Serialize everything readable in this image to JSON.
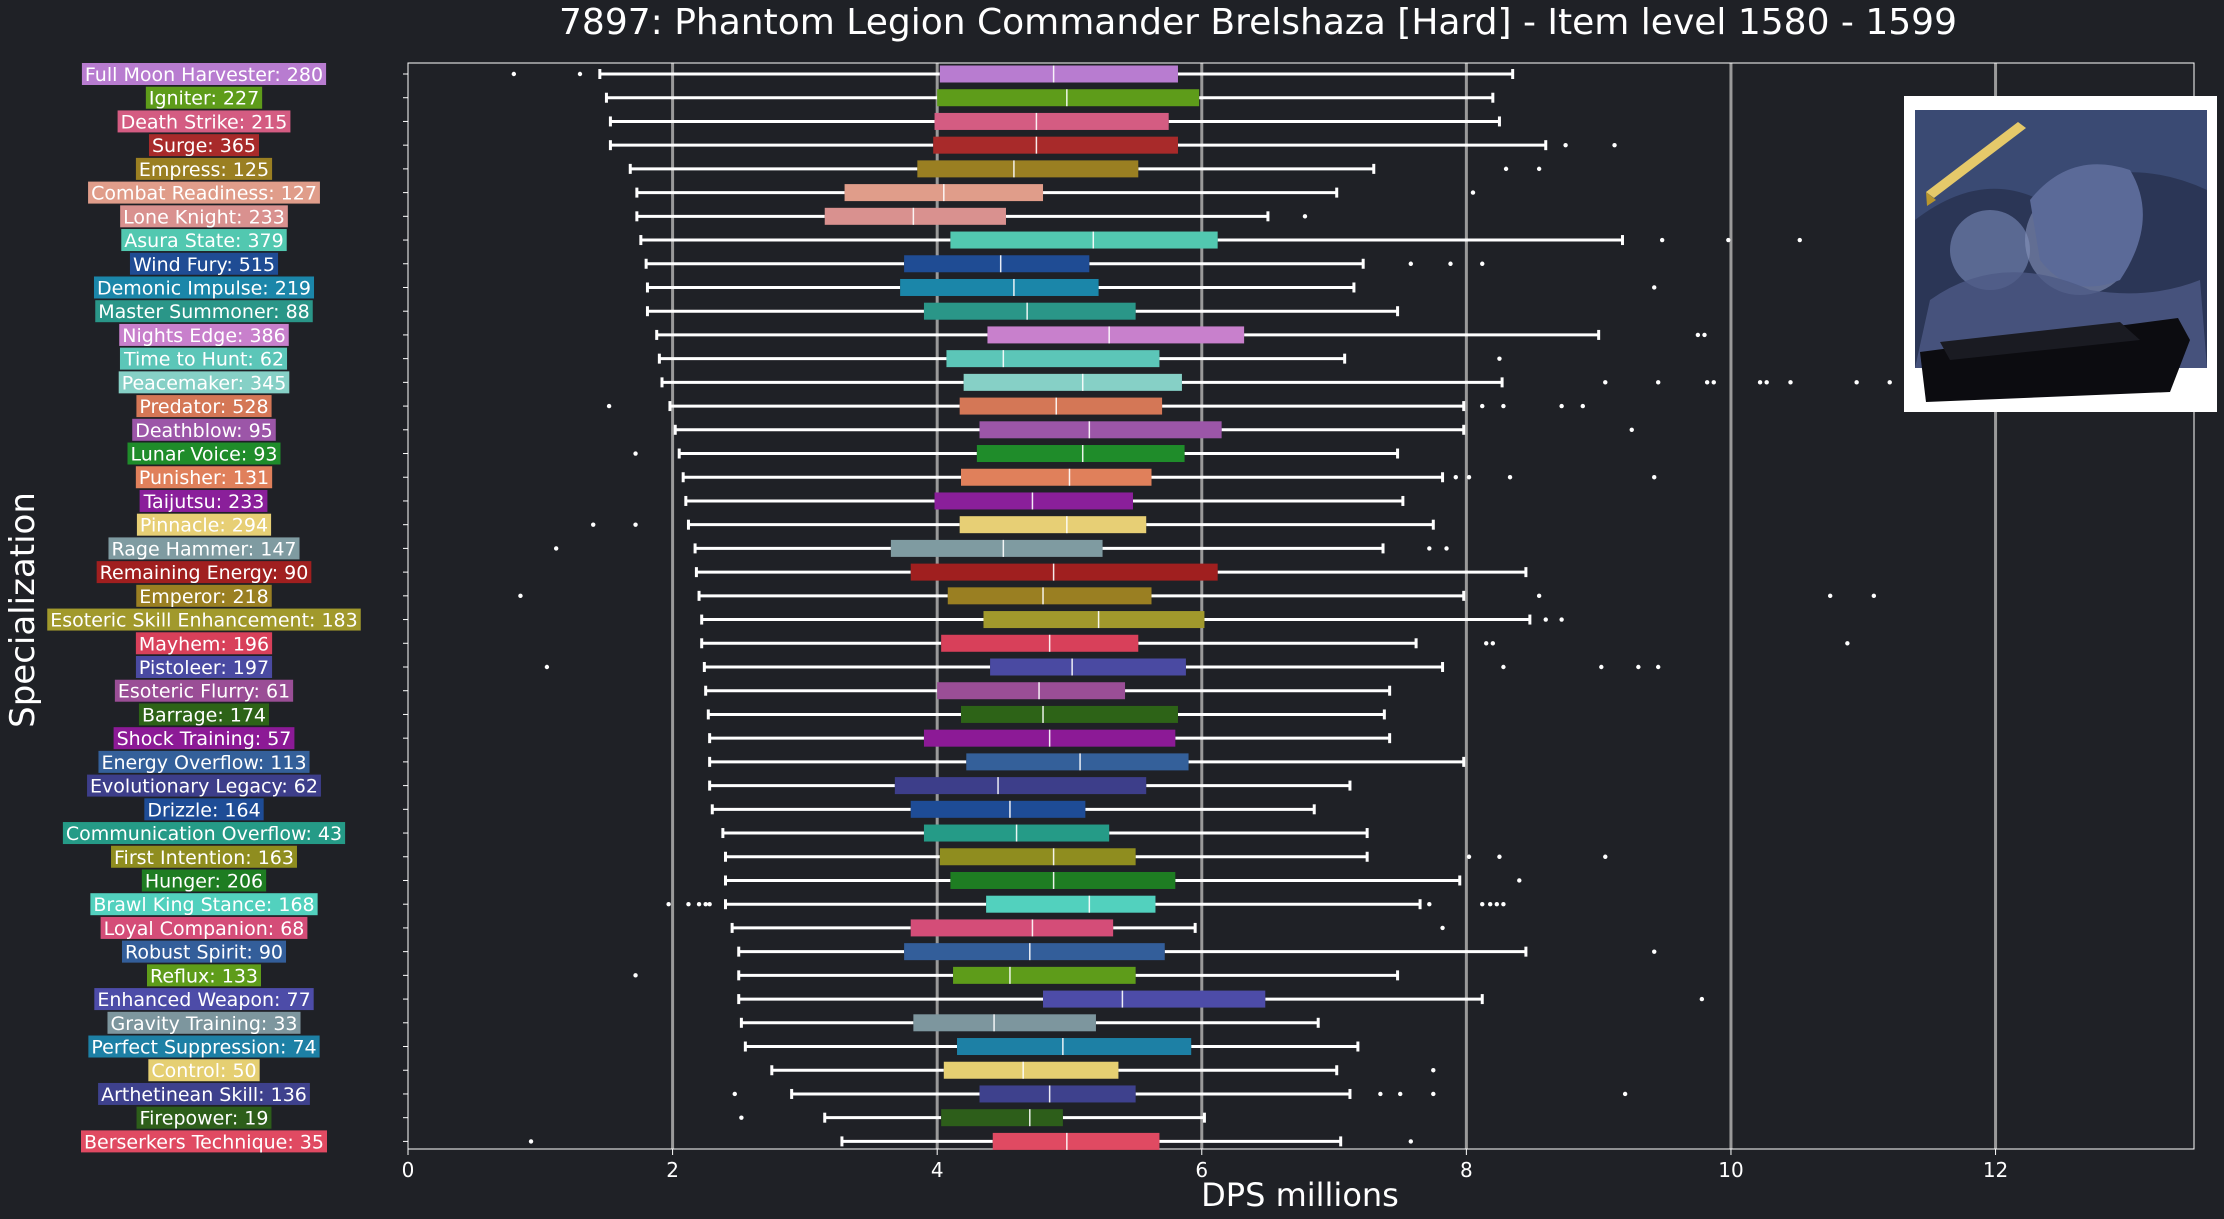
{
  "chart_data": {
    "type": "box",
    "title": "7897: Phantom Legion Commander Brelshaza [Hard] - Item level 1580 - 1599",
    "xlabel": "DPS millions",
    "ylabel": "Specialization",
    "xlim": [
      0,
      13.5
    ],
    "xticks": [
      0,
      2,
      4,
      6,
      8,
      10,
      12
    ],
    "grid": "vertical at 2, 4, 6, 8, 10, 12",
    "image_inset": "boss portrait (top-right)",
    "series": [
      {
        "label": "Full Moon Harvester: 280",
        "color": "#b87cd0",
        "box": [
          1.45,
          4.02,
          4.88,
          5.82,
          8.35
        ],
        "outliers": [
          0.8,
          1.3
        ]
      },
      {
        "label": "Igniter: 227",
        "color": "#5e9c1a",
        "box": [
          1.5,
          4.0,
          4.98,
          5.98,
          8.2
        ],
        "outliers": []
      },
      {
        "label": "Death Strike: 215",
        "color": "#d45c82",
        "box": [
          1.53,
          3.98,
          4.75,
          5.75,
          8.25
        ],
        "outliers": []
      },
      {
        "label": "Surge: 365",
        "color": "#a82a2a",
        "box": [
          1.53,
          3.97,
          4.75,
          5.82,
          8.6
        ],
        "outliers": [
          8.75,
          9.12
        ]
      },
      {
        "label": "Empress: 125",
        "color": "#9a7f22",
        "box": [
          1.68,
          3.85,
          4.58,
          5.52,
          7.3
        ],
        "outliers": [
          8.3,
          8.55
        ]
      },
      {
        "label": "Combat Readiness: 127",
        "color": "#e09d8a",
        "box": [
          1.73,
          3.3,
          4.05,
          4.8,
          7.02
        ],
        "outliers": [
          8.05
        ]
      },
      {
        "label": "Lone Knight: 233",
        "color": "#d9918f",
        "box": [
          1.73,
          3.15,
          3.82,
          4.52,
          6.5
        ],
        "outliers": [
          6.78
        ]
      },
      {
        "label": "Asura State: 379",
        "color": "#52c8b0",
        "box": [
          1.76,
          4.1,
          5.18,
          6.12,
          9.18
        ],
        "outliers": [
          9.48,
          9.98,
          10.52
        ]
      },
      {
        "label": "Wind Fury: 515",
        "color": "#1f4c94",
        "box": [
          1.8,
          3.75,
          4.48,
          5.15,
          7.22
        ],
        "outliers": [
          7.58,
          7.88,
          8.12
        ]
      },
      {
        "label": "Demonic Impulse: 219",
        "color": "#1b86a9",
        "box": [
          1.81,
          3.72,
          4.58,
          5.22,
          7.15
        ],
        "outliers": [
          9.42
        ]
      },
      {
        "label": "Master Summoner: 88",
        "color": "#2a9688",
        "box": [
          1.81,
          3.9,
          4.68,
          5.5,
          7.48
        ],
        "outliers": []
      },
      {
        "label": "Nights Edge: 386",
        "color": "#c880cc",
        "box": [
          1.88,
          4.38,
          5.3,
          6.32,
          9.0
        ],
        "outliers": [
          9.75,
          9.8
        ]
      },
      {
        "label": "Time to Hunt: 62",
        "color": "#5cc6b8",
        "box": [
          1.9,
          4.07,
          4.5,
          5.68,
          7.08
        ],
        "outliers": [
          8.25
        ]
      },
      {
        "label": "Peacemaker: 345",
        "color": "#86d0c6",
        "box": [
          1.92,
          4.2,
          5.1,
          5.85,
          8.27
        ],
        "outliers": [
          9.05,
          9.45,
          9.82,
          9.87,
          10.22,
          10.27,
          10.45,
          10.95,
          11.2
        ]
      },
      {
        "label": "Predator: 528",
        "color": "#d47756",
        "box": [
          1.98,
          4.17,
          4.9,
          5.7,
          7.98
        ],
        "outliers": [
          1.52,
          8.12,
          8.28,
          8.72,
          8.88
        ]
      },
      {
        "label": "Deathblow: 95",
        "color": "#9c56a8",
        "box": [
          2.02,
          4.32,
          5.15,
          6.15,
          7.98
        ],
        "outliers": [
          9.25
        ]
      },
      {
        "label": "Lunar Voice: 93",
        "color": "#1f8c2a",
        "box": [
          2.05,
          4.3,
          5.1,
          5.87,
          7.48
        ],
        "outliers": [
          1.72
        ]
      },
      {
        "label": "Punisher: 131",
        "color": "#e0805b",
        "box": [
          2.08,
          4.18,
          5.0,
          5.62,
          7.82
        ],
        "outliers": [
          7.92,
          8.02,
          8.33,
          9.42
        ]
      },
      {
        "label": "Taijutsu: 233",
        "color": "#8a1f9a",
        "box": [
          2.1,
          3.98,
          4.72,
          5.48,
          7.52
        ],
        "outliers": []
      },
      {
        "label": "Pinnacle: 294",
        "color": "#e7cf75",
        "box": [
          2.12,
          4.17,
          4.98,
          5.58,
          7.75
        ],
        "outliers": [
          1.4,
          1.72
        ]
      },
      {
        "label": "Rage Hammer: 147",
        "color": "#7f9ba1",
        "box": [
          2.17,
          3.65,
          4.5,
          5.25,
          7.37
        ],
        "outliers": [
          1.12,
          7.72,
          7.85
        ]
      },
      {
        "label": "Remaining Energy: 90",
        "color": "#a01f1f",
        "box": [
          2.18,
          3.8,
          4.88,
          6.12,
          8.45
        ],
        "outliers": []
      },
      {
        "label": "Emperor: 218",
        "color": "#9a7f22",
        "box": [
          2.2,
          4.08,
          4.8,
          5.62,
          7.98
        ],
        "outliers": [
          0.85,
          8.55,
          10.75,
          11.08
        ]
      },
      {
        "label": "Esoteric Skill Enhancement: 183",
        "color": "#a1992c",
        "box": [
          2.22,
          4.35,
          5.22,
          6.02,
          8.48
        ],
        "outliers": [
          8.6,
          8.72
        ]
      },
      {
        "label": "Mayhem: 196",
        "color": "#d8405a",
        "box": [
          2.22,
          4.03,
          4.85,
          5.52,
          7.62
        ],
        "outliers": [
          8.15,
          8.2,
          10.88
        ]
      },
      {
        "label": "Pistoleer: 197",
        "color": "#4a4aa2",
        "box": [
          2.24,
          4.4,
          5.02,
          5.88,
          7.82
        ],
        "outliers": [
          1.05,
          8.28,
          9.02,
          9.3,
          9.45
        ]
      },
      {
        "label": "Esoteric Flurry: 61",
        "color": "#9a4e96",
        "box": [
          2.25,
          4.0,
          4.77,
          5.42,
          7.42
        ],
        "outliers": []
      },
      {
        "label": "Barrage: 174",
        "color": "#2d6317",
        "box": [
          2.27,
          4.18,
          4.8,
          5.82,
          7.38
        ],
        "outliers": []
      },
      {
        "label": "Shock Training: 57",
        "color": "#8c1a96",
        "box": [
          2.28,
          3.9,
          4.85,
          5.8,
          7.42
        ],
        "outliers": []
      },
      {
        "label": "Energy Overflow: 113",
        "color": "#34609a",
        "box": [
          2.28,
          4.22,
          5.08,
          5.9,
          7.98
        ],
        "outliers": []
      },
      {
        "label": "Evolutionary Legacy: 62",
        "color": "#3d3e8a",
        "box": [
          2.28,
          3.68,
          4.46,
          5.58,
          7.12
        ],
        "outliers": []
      },
      {
        "label": "Drizzle: 164",
        "color": "#1e4c96",
        "box": [
          2.3,
          3.8,
          4.55,
          5.12,
          6.85
        ],
        "outliers": []
      },
      {
        "label": "Communication Overflow: 43",
        "color": "#259b87",
        "box": [
          2.38,
          3.9,
          4.6,
          5.3,
          7.25
        ],
        "outliers": []
      },
      {
        "label": "First Intention: 163",
        "color": "#8f8d1f",
        "box": [
          2.4,
          4.02,
          4.88,
          5.5,
          7.25
        ],
        "outliers": [
          8.02,
          8.25,
          9.05
        ]
      },
      {
        "label": "Hunger: 206",
        "color": "#1e7d22",
        "box": [
          2.4,
          4.1,
          4.88,
          5.8,
          7.95
        ],
        "outliers": [
          8.4
        ]
      },
      {
        "label": "Brawl King Stance: 168",
        "color": "#52d1be",
        "box": [
          2.4,
          4.37,
          5.15,
          5.65,
          7.65
        ],
        "outliers": [
          1.97,
          2.12,
          2.2,
          2.25,
          2.28,
          7.72,
          8.12,
          8.18,
          8.23,
          8.28
        ]
      },
      {
        "label": "Loyal Companion: 68",
        "color": "#d44d78",
        "box": [
          2.45,
          3.8,
          4.72,
          5.33,
          5.95
        ],
        "outliers": [
          7.82
        ]
      },
      {
        "label": "Robust Spirit: 90",
        "color": "#335e9a",
        "box": [
          2.5,
          3.75,
          4.7,
          5.72,
          8.45
        ],
        "outliers": [
          9.42
        ]
      },
      {
        "label": "Reflux: 133",
        "color": "#5e9c1a",
        "box": [
          2.5,
          4.12,
          4.55,
          5.5,
          7.48
        ],
        "outliers": [
          1.72
        ]
      },
      {
        "label": "Enhanced Weapon: 77",
        "color": "#4d4ca8",
        "box": [
          2.5,
          4.8,
          5.4,
          6.48,
          8.12
        ],
        "outliers": [
          9.78
        ]
      },
      {
        "label": "Gravity Training: 33",
        "color": "#7d969e",
        "box": [
          2.52,
          3.82,
          4.43,
          5.2,
          6.88
        ],
        "outliers": []
      },
      {
        "label": "Perfect Suppression: 74",
        "color": "#1d80a5",
        "box": [
          2.55,
          4.15,
          4.95,
          5.92,
          7.18
        ],
        "outliers": []
      },
      {
        "label": "Control: 50",
        "color": "#e5cf72",
        "box": [
          2.75,
          4.05,
          4.65,
          5.37,
          7.02
        ],
        "outliers": [
          7.75
        ]
      },
      {
        "label": "Arthetinean Skill: 136",
        "color": "#3e418d",
        "box": [
          2.9,
          4.32,
          4.85,
          5.5,
          7.12
        ],
        "outliers": [
          2.47,
          7.35,
          7.5,
          7.75,
          9.2
        ]
      },
      {
        "label": "Firepower: 19",
        "color": "#2d5e1a",
        "box": [
          3.15,
          4.03,
          4.7,
          4.95,
          6.02
        ],
        "outliers": [
          2.52
        ]
      },
      {
        "label": "Berserkers Technique: 35",
        "color": "#e04a62",
        "box": [
          3.28,
          4.42,
          4.98,
          5.68,
          7.05
        ],
        "outliers": [
          0.93,
          7.58
        ]
      }
    ]
  }
}
